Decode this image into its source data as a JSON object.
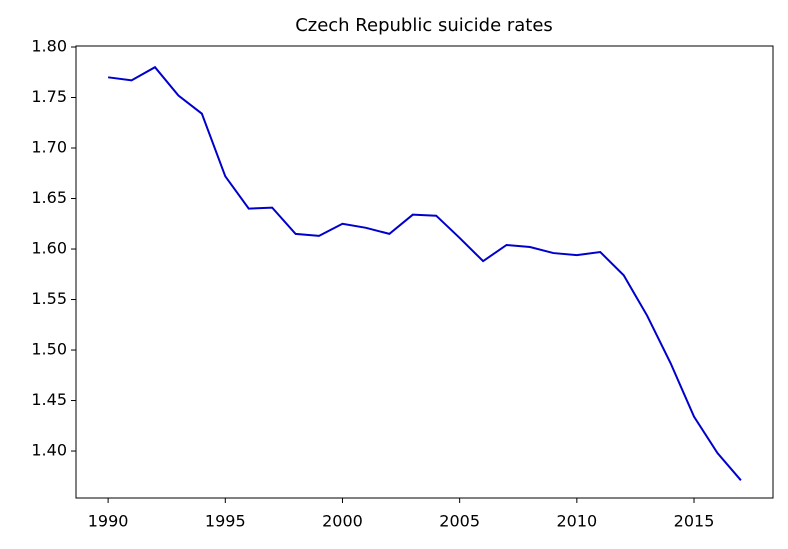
{
  "chart_data": {
    "type": "line",
    "title": "Czech Republic suicide rates",
    "x": [
      1990,
      1991,
      1992,
      1993,
      1994,
      1995,
      1996,
      1997,
      1998,
      1999,
      2000,
      2001,
      2002,
      2003,
      2004,
      2005,
      2006,
      2007,
      2008,
      2009,
      2010,
      2011,
      2012,
      2013,
      2014,
      2015,
      2016,
      2017
    ],
    "series": [
      {
        "color": "#0000cd",
        "values": [
          1.77,
          1.767,
          1.78,
          1.752,
          1.734,
          1.672,
          1.64,
          1.641,
          1.615,
          1.613,
          1.625,
          1.621,
          1.615,
          1.634,
          1.633,
          1.611,
          1.588,
          1.604,
          1.602,
          1.596,
          1.594,
          1.597,
          1.574,
          1.534,
          1.487,
          1.434,
          1.398,
          1.371
        ]
      }
    ],
    "xlim": [
      1988.63,
      2018.37
    ],
    "ylim": [
      1.3535,
      1.801
    ],
    "xticks": [
      1990,
      1995,
      2000,
      2005,
      2010,
      2015
    ],
    "yticks": [
      {
        "value": 1.4,
        "label": "1.40"
      },
      {
        "value": 1.45,
        "label": "1.45"
      },
      {
        "value": 1.5,
        "label": "1.50"
      },
      {
        "value": 1.55,
        "label": "1.55"
      },
      {
        "value": 1.6,
        "label": "1.60"
      },
      {
        "value": 1.65,
        "label": "1.65"
      },
      {
        "value": 1.7,
        "label": "1.70"
      },
      {
        "value": 1.75,
        "label": "1.75"
      },
      {
        "value": 1.8,
        "label": "1.80"
      }
    ]
  }
}
